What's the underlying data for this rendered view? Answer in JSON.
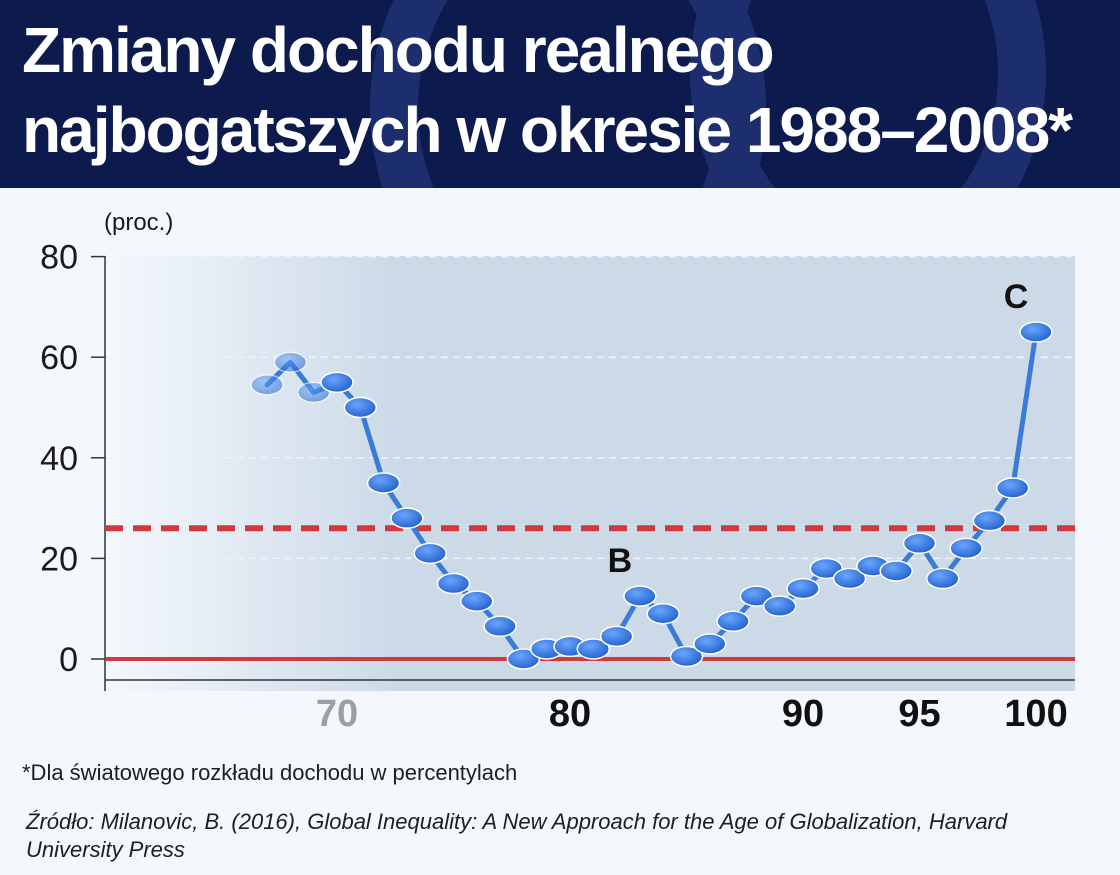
{
  "header": {
    "title_line1": "Zmiany dochodu realnego",
    "title_line2": "najbogatszych w okresie 1988–2008*",
    "background": "#0d1a4e"
  },
  "footnote": "*Dla światowego rozkładu dochodu w percentylach",
  "source": "Źródło: Milanovic, B. (2016), Global Inequality: A New Approach for the Age of Globalization, Harvard University Press",
  "chart_data": {
    "type": "line",
    "ylabel": "(proc.)",
    "ylim": [
      0,
      80
    ],
    "xlim": [
      61,
      102
    ],
    "yticks": [
      0,
      20,
      40,
      60,
      80
    ],
    "xticks": [
      "70",
      "80",
      "90",
      "95",
      "100"
    ],
    "grid": "horizontal dashed",
    "x": [
      67,
      68,
      69,
      70,
      71,
      72,
      73,
      74,
      75,
      76,
      77,
      78,
      79,
      80,
      81,
      82,
      83,
      84,
      85,
      86,
      87,
      88,
      89,
      90,
      91,
      92,
      93,
      94,
      95,
      96,
      97,
      98,
      99,
      100
    ],
    "y": [
      54.5,
      59,
      53,
      55,
      50,
      35,
      28,
      21,
      15,
      11.5,
      6.5,
      0,
      2,
      2.5,
      2,
      4.5,
      12.5,
      9,
      0.5,
      3,
      7.5,
      12.5,
      10.5,
      14,
      18,
      16,
      18.5,
      17.5,
      23,
      16,
      22,
      27.5,
      34,
      65
    ],
    "reference_lines": [
      {
        "y": 0,
        "style": "solid",
        "color": "#d0393d"
      },
      {
        "y": 26,
        "style": "dashed",
        "color": "#d0393d"
      }
    ],
    "annotations": [
      {
        "text": "B",
        "x": 83,
        "y": 12.5
      },
      {
        "text": "C",
        "x": 100,
        "y": 65
      }
    ],
    "colors": {
      "line": "#3a7bd5",
      "marker": "#2f6fd6",
      "plot_bg": "#ccdae8"
    }
  }
}
